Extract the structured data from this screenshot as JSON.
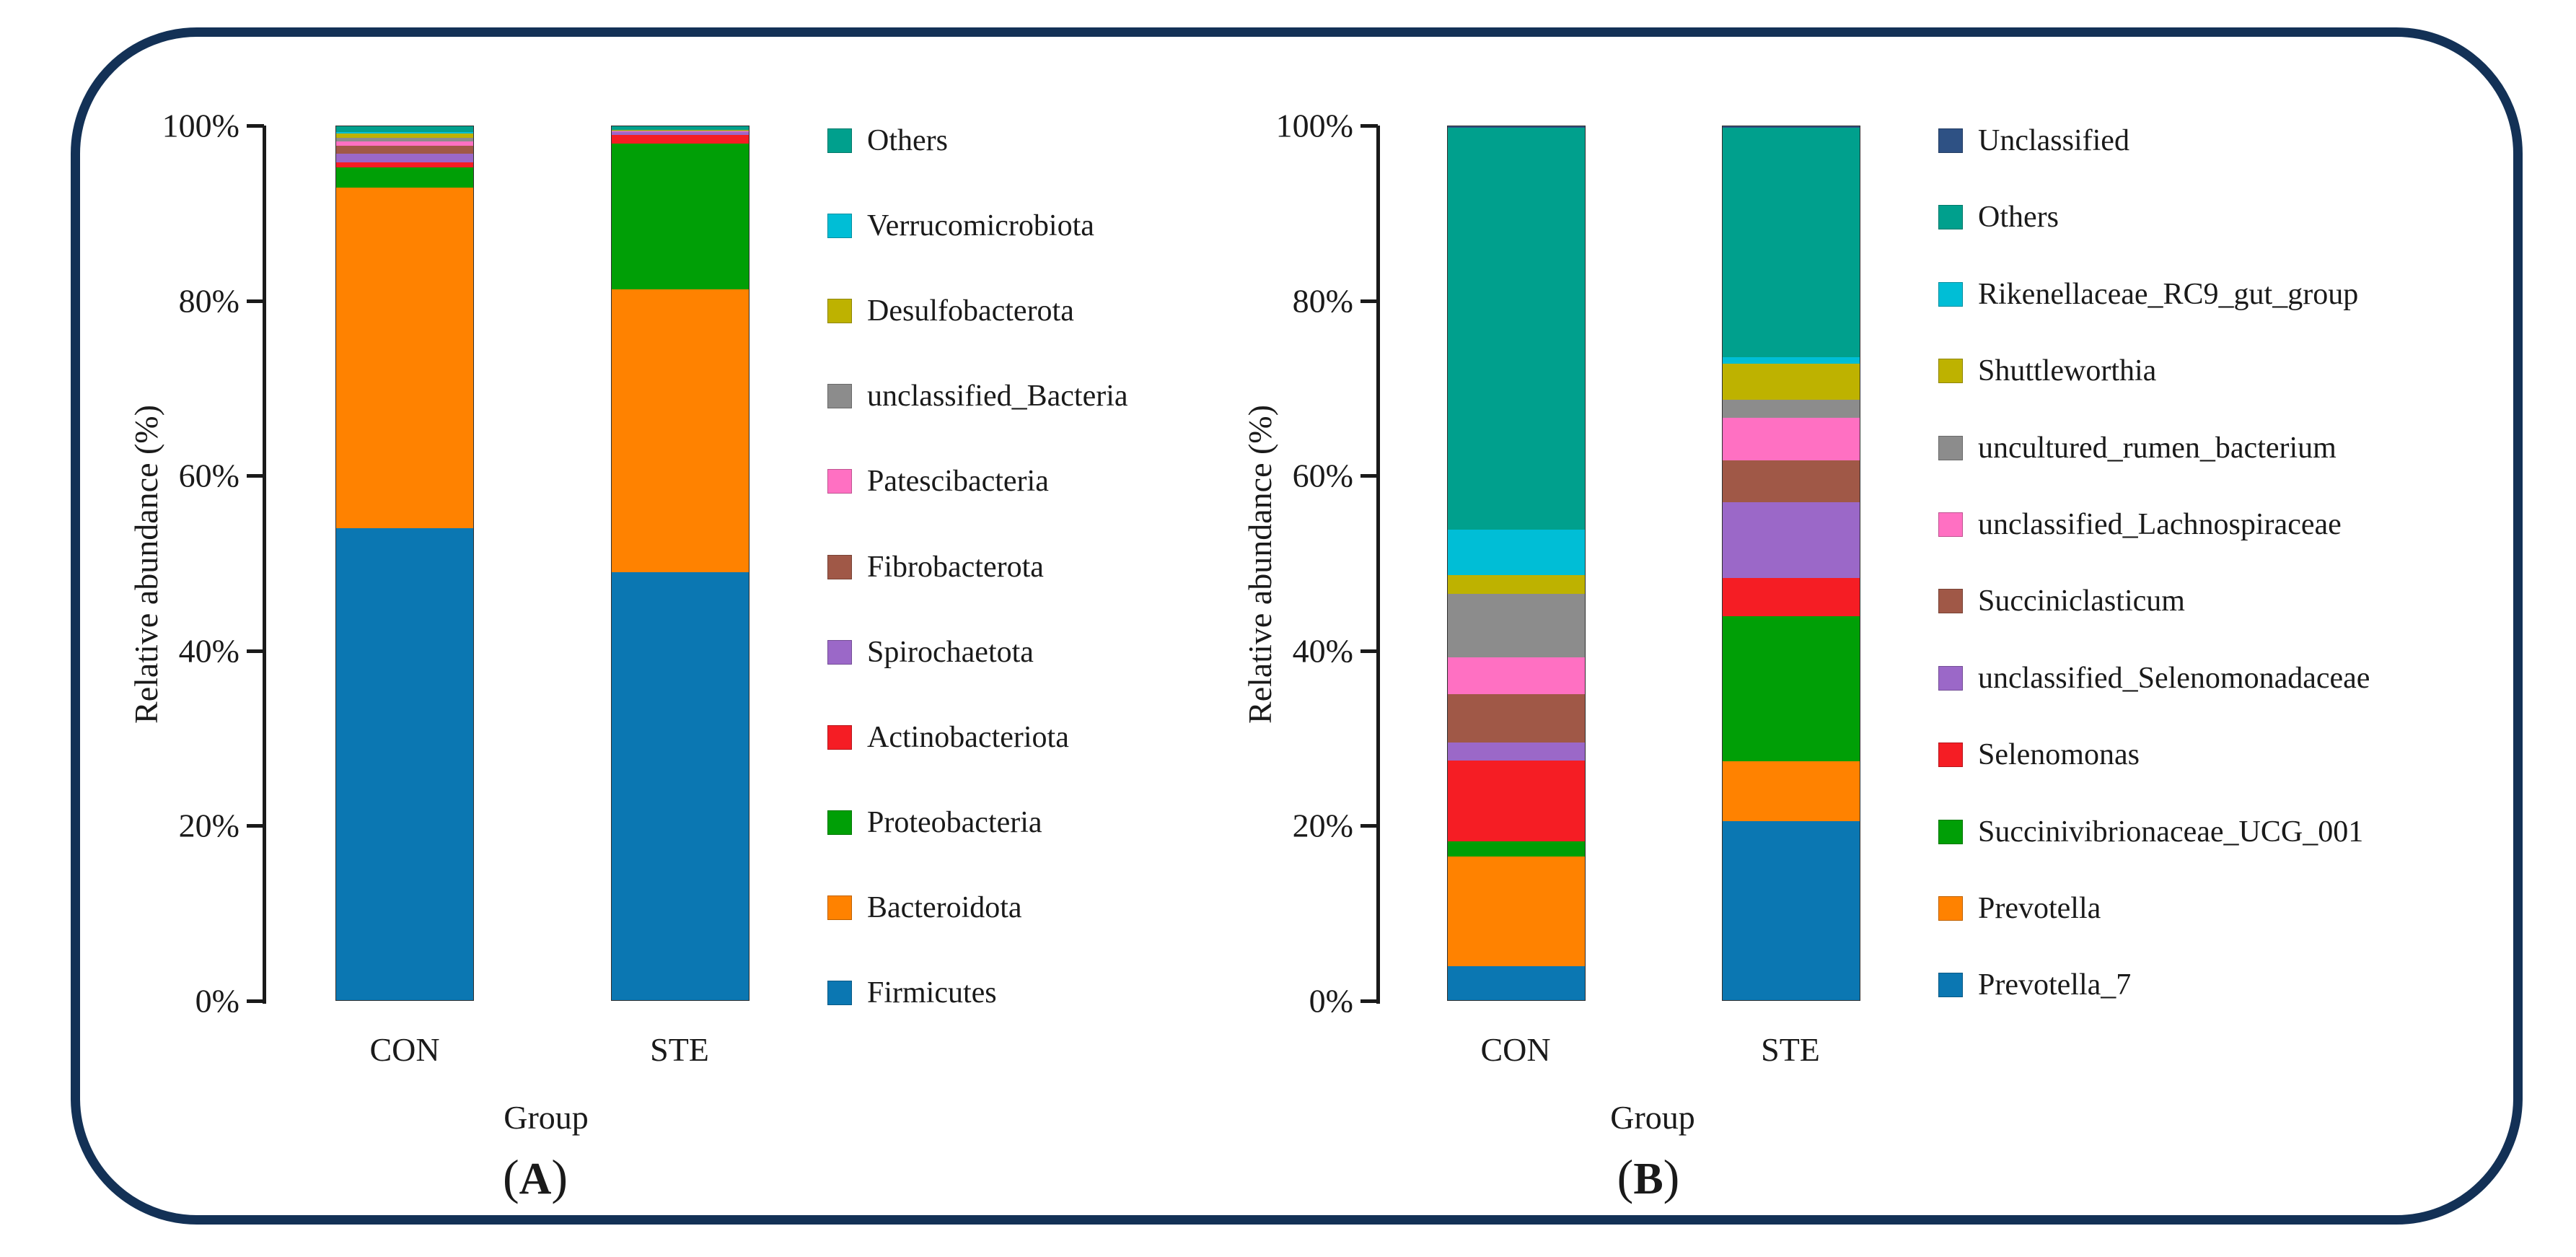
{
  "figure": {
    "background_color": "#FFFFFF",
    "border_color": "#133156",
    "axis_color": "#1A1A1A"
  },
  "chart_data": [
    {
      "type": "bar",
      "stacked": true,
      "panel_label_parts": {
        "open": "(",
        "letter": "A",
        "close": ")"
      },
      "xlabel": "Group",
      "ylabel": "Relative abundance (%)",
      "ylim": [
        0,
        100
      ],
      "grid": false,
      "legend_position": "right",
      "categories": [
        "CON",
        "STE"
      ],
      "y_ticks": [
        {
          "label": "100%",
          "value": 100
        },
        {
          "label": "80%",
          "value": 80
        },
        {
          "label": "60%",
          "value": 60
        },
        {
          "label": "40%",
          "value": 40
        },
        {
          "label": "20%",
          "value": 20
        },
        {
          "label": "0%",
          "value": 0
        }
      ],
      "series": [
        {
          "name": "Others",
          "color": "#00A08D",
          "values": [
            0.7,
            0.4
          ]
        },
        {
          "name": "Verrucomicrobiota",
          "color": "#00BED6",
          "values": [
            0.1,
            0.05
          ]
        },
        {
          "name": "Desulfobacterota",
          "color": "#BEB200",
          "values": [
            0.5,
            0.05
          ]
        },
        {
          "name": "unclassified_Bacteria",
          "color": "#8C8C8C",
          "values": [
            0.4,
            0.1
          ]
        },
        {
          "name": "Patescibacteria",
          "color": "#FF70C2",
          "values": [
            0.5,
            0.05
          ]
        },
        {
          "name": "Fibrobacterota",
          "color": "#A05847",
          "values": [
            0.9,
            0.05
          ]
        },
        {
          "name": "Spirochaetota",
          "color": "#9B68C8",
          "values": [
            1.0,
            0.3
          ]
        },
        {
          "name": "Actinobacteriota",
          "color": "#F51D24",
          "values": [
            0.6,
            1.0
          ]
        },
        {
          "name": "Proteobacteria",
          "color": "#009F06",
          "values": [
            2.3,
            16.7
          ]
        },
        {
          "name": "Bacteroidota",
          "color": "#FF8200",
          "values": [
            39.0,
            32.3
          ]
        },
        {
          "name": "Firmicutes",
          "color": "#0B77B2",
          "values": [
            54.0,
            49.0
          ]
        }
      ]
    },
    {
      "type": "bar",
      "stacked": true,
      "panel_label_parts": {
        "open": "(",
        "letter": "B",
        "close": ")"
      },
      "xlabel": "Group",
      "ylabel": "Relative abundance (%)",
      "ylim": [
        0,
        100
      ],
      "grid": false,
      "legend_position": "right",
      "categories": [
        "CON",
        "STE"
      ],
      "y_ticks": [
        {
          "label": "100%",
          "value": 100
        },
        {
          "label": "80%",
          "value": 80
        },
        {
          "label": "60%",
          "value": 60
        },
        {
          "label": "40%",
          "value": 40
        },
        {
          "label": "20%",
          "value": 20
        },
        {
          "label": "0%",
          "value": 0
        }
      ],
      "series": [
        {
          "name": "Unclassified",
          "color": "#2E5184",
          "values": [
            0.2,
            0.2
          ]
        },
        {
          "name": "Others",
          "color": "#00A08D",
          "values": [
            46.0,
            26.2
          ]
        },
        {
          "name": "Rikenellaceae_RC9_gut_group",
          "color": "#00BED6",
          "values": [
            5.2,
            0.8
          ]
        },
        {
          "name": "Shuttleworthia",
          "color": "#BEB200",
          "values": [
            2.1,
            4.1
          ]
        },
        {
          "name": "uncultured_rumen_bacterium",
          "color": "#8C8C8C",
          "values": [
            7.3,
            2.1
          ]
        },
        {
          "name": "unclassified_Lachnospiraceae",
          "color": "#FF70C2",
          "values": [
            4.2,
            4.8
          ]
        },
        {
          "name": "Succiniclasticum",
          "color": "#A05847",
          "values": [
            5.5,
            4.8
          ]
        },
        {
          "name": "unclassified_Selenomonadaceae",
          "color": "#9B68C8",
          "values": [
            2.1,
            8.7
          ]
        },
        {
          "name": "Selenomonas",
          "color": "#F51D24",
          "values": [
            9.2,
            4.4
          ]
        },
        {
          "name": "Succinivibrionaceae_UCG_001",
          "color": "#009F06",
          "values": [
            1.8,
            16.6
          ]
        },
        {
          "name": "Prevotella",
          "color": "#FF8200",
          "values": [
            12.5,
            6.8
          ]
        },
        {
          "name": "Prevotella_7",
          "color": "#0B77B2",
          "values": [
            3.9,
            20.5
          ]
        }
      ]
    }
  ]
}
